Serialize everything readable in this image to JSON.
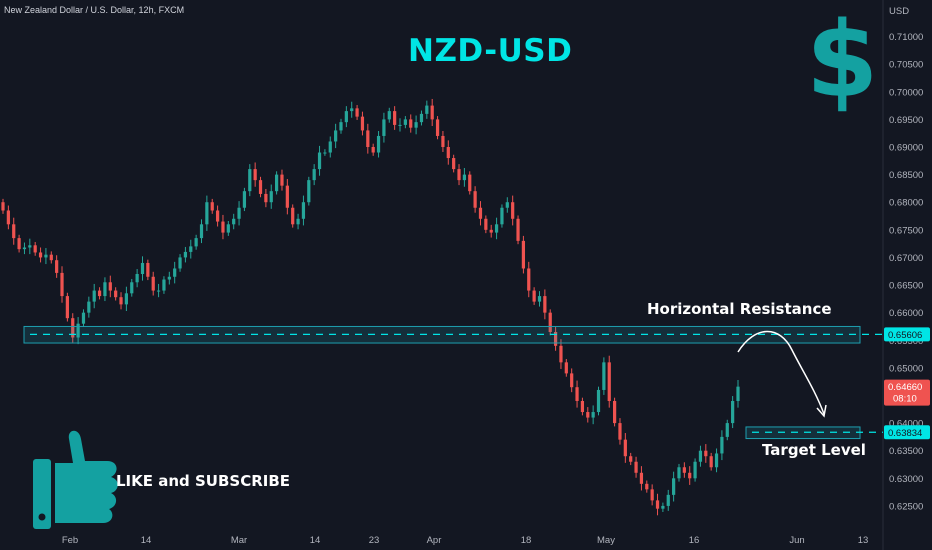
{
  "header": {
    "symbol_line": "New Zealand Dollar / U.S. Dollar, 12h, FXCM"
  },
  "overlay": {
    "title": "NZD-USD",
    "dollar_sign": "$",
    "resistance_label": "Horizontal Resistance",
    "target_label": "Target Level",
    "cta": "LIKE and SUBSCRIBE",
    "thumb_icon": "thumbs-up-icon"
  },
  "colors": {
    "up": "#26a69a",
    "down": "#ef5350",
    "accent": "#00e5e5",
    "zone": "#1e9fb0",
    "background": "#131722"
  },
  "tags": {
    "resistance": "0.65606",
    "target": "0.63834",
    "last_price": "0.64660",
    "countdown": "08:10"
  },
  "chart_data": {
    "type": "candlestick",
    "ylabel": "USD",
    "ylim": [
      0.621,
      0.713
    ],
    "y_ticks": [
      "0.62500",
      "0.63000",
      "0.63500",
      "0.64000",
      "0.64500",
      "0.65000",
      "0.65500",
      "0.66000",
      "0.66500",
      "0.67000",
      "0.67500",
      "0.68000",
      "0.68500",
      "0.69000",
      "0.69500",
      "0.70000",
      "0.70500",
      "0.71000"
    ],
    "x_labels": [
      "Feb",
      "14",
      "Mar",
      "14",
      "23",
      "Apr",
      "18",
      "May",
      "16",
      "Jun",
      "13"
    ],
    "horizontal_levels": [
      {
        "name": "Horizontal Resistance",
        "value": 0.65606,
        "zone": [
          0.6545,
          0.6575
        ]
      },
      {
        "name": "Target Level",
        "value": 0.63834,
        "zone": [
          0.6372,
          0.6393
        ]
      }
    ],
    "last_price": 0.6466,
    "closes": [
      0.6785,
      0.676,
      0.6735,
      0.6715,
      0.6718,
      0.6722,
      0.6709,
      0.67,
      0.6705,
      0.6695,
      0.6672,
      0.663,
      0.659,
      0.6555,
      0.658,
      0.66,
      0.662,
      0.664,
      0.663,
      0.6655,
      0.664,
      0.6628,
      0.6615,
      0.6635,
      0.6655,
      0.667,
      0.669,
      0.6665,
      0.664,
      0.664,
      0.666,
      0.6665,
      0.668,
      0.67,
      0.671,
      0.672,
      0.6735,
      0.676,
      0.68,
      0.6785,
      0.6765,
      0.6745,
      0.676,
      0.677,
      0.679,
      0.682,
      0.686,
      0.684,
      0.6815,
      0.68,
      0.682,
      0.685,
      0.683,
      0.679,
      0.676,
      0.677,
      0.68,
      0.684,
      0.686,
      0.689,
      0.689,
      0.691,
      0.693,
      0.6945,
      0.6965,
      0.697,
      0.6955,
      0.693,
      0.69,
      0.689,
      0.692,
      0.695,
      0.6965,
      0.694,
      0.694,
      0.695,
      0.6935,
      0.6945,
      0.696,
      0.6975,
      0.695,
      0.692,
      0.69,
      0.688,
      0.686,
      0.684,
      0.685,
      0.682,
      0.679,
      0.677,
      0.675,
      0.6745,
      0.676,
      0.679,
      0.68,
      0.677,
      0.673,
      0.668,
      0.664,
      0.662,
      0.663,
      0.66,
      0.6565,
      0.654,
      0.651,
      0.649,
      0.6465,
      0.644,
      0.642,
      0.641,
      0.642,
      0.646,
      0.651,
      0.644,
      0.64,
      0.637,
      0.634,
      0.633,
      0.631,
      0.629,
      0.628,
      0.626,
      0.6245,
      0.625,
      0.627,
      0.63,
      0.632,
      0.631,
      0.63,
      0.633,
      0.635,
      0.634,
      0.632,
      0.6345,
      0.6375,
      0.64,
      0.644,
      0.6466
    ]
  }
}
